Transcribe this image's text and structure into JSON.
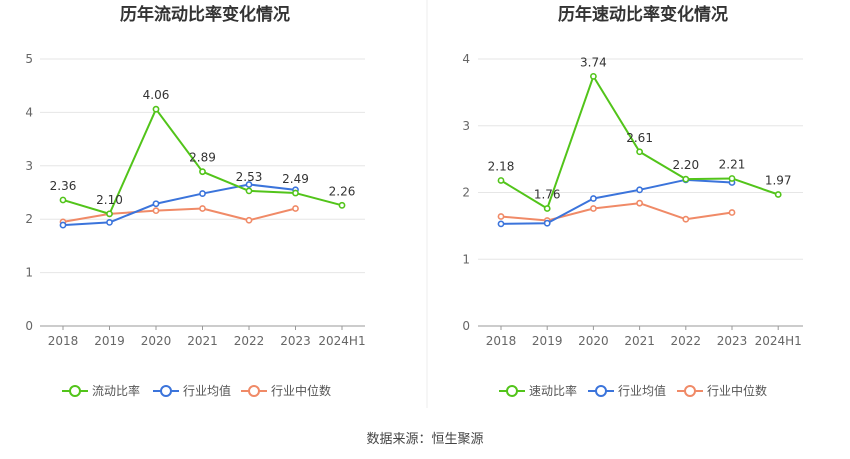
{
  "source_text": "数据来源：恒生聚源",
  "colors": {
    "main": "#52c41a",
    "avg": "#3b74db",
    "median": "#f08a67",
    "grid": "#e6e6e6",
    "axis": "#999999",
    "divider": "#eeeeee"
  },
  "chart_data": [
    {
      "type": "line",
      "title": "历年流动比率变化情况",
      "categories": [
        "2018",
        "2019",
        "2020",
        "2021",
        "2022",
        "2023",
        "2024H1"
      ],
      "ylim": [
        0,
        5
      ],
      "yticks": [
        0,
        1,
        2,
        3,
        4,
        5
      ],
      "grid": true,
      "legend_position": "bottom",
      "series": [
        {
          "name": "流动比率",
          "role": "main",
          "values": [
            2.36,
            2.1,
            4.06,
            2.89,
            2.53,
            2.49,
            2.26
          ],
          "labels": [
            "2.36",
            "2.10",
            "4.06",
            "2.89",
            "2.53",
            "2.49",
            "2.26"
          ]
        },
        {
          "name": "行业均值",
          "role": "avg",
          "values": [
            1.89,
            1.94,
            2.29,
            2.48,
            2.65,
            2.55,
            null
          ]
        },
        {
          "name": "行业中位数",
          "role": "median",
          "values": [
            1.95,
            2.1,
            2.16,
            2.2,
            1.98,
            2.2,
            null
          ]
        }
      ]
    },
    {
      "type": "line",
      "title": "历年速动比率变化情况",
      "categories": [
        "2018",
        "2019",
        "2020",
        "2021",
        "2022",
        "2023",
        "2024H1"
      ],
      "ylim": [
        0,
        4
      ],
      "yticks": [
        0,
        1,
        2,
        3,
        4
      ],
      "grid": true,
      "legend_position": "bottom",
      "series": [
        {
          "name": "速动比率",
          "role": "main",
          "values": [
            2.18,
            1.76,
            3.74,
            2.61,
            2.2,
            2.21,
            1.97
          ],
          "labels": [
            "2.18",
            "1.76",
            "3.74",
            "2.61",
            "2.20",
            "2.21",
            "1.97"
          ]
        },
        {
          "name": "行业均值",
          "role": "avg",
          "values": [
            1.53,
            1.54,
            1.91,
            2.04,
            2.19,
            2.15,
            null
          ]
        },
        {
          "name": "行业中位数",
          "role": "median",
          "values": [
            1.64,
            1.58,
            1.76,
            1.84,
            1.6,
            1.7,
            null
          ]
        }
      ]
    }
  ]
}
